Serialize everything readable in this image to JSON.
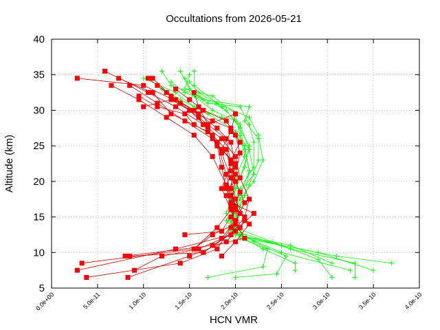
{
  "chart_data": {
    "type": "line",
    "title": "Occultations from 2026-05-21",
    "xlabel": "HCN VMR",
    "ylabel": "Altitude (km)",
    "xlim": [
      0,
      4e-10
    ],
    "ylim": [
      5,
      40
    ],
    "xticks": [
      "0.0e+00",
      "5.0e-11",
      "1.0e-10",
      "1.5e-10",
      "2.0e-10",
      "2.5e-10",
      "3.0e-10",
      "3.5e-10",
      "4.0e-10"
    ],
    "yticks": [
      "5",
      "10",
      "15",
      "20",
      "25",
      "30",
      "35",
      "40"
    ],
    "grid": true,
    "legend": "none",
    "series_colors": {
      "red": "#ff0000",
      "green": "#00ff00",
      "red_line": "#cc0000"
    },
    "series": [
      {
        "color": "red",
        "marker": "square",
        "points": [
          [
            2.8e-11,
            34.5
          ],
          [
            1e-10,
            33.5
          ],
          [
            1.4e-10,
            31.0
          ],
          [
            1.6e-10,
            29.0
          ],
          [
            1.9e-10,
            26.0
          ],
          [
            1.95e-10,
            22.5
          ],
          [
            1.85e-10,
            19.0
          ],
          [
            1.95e-10,
            16.0
          ],
          [
            1.8e-10,
            13.5
          ],
          [
            1.55e-10,
            10.5
          ],
          [
            3.3e-11,
            8.5
          ]
        ]
      },
      {
        "color": "red",
        "marker": "square",
        "points": [
          [
            5.8e-11,
            35.5
          ],
          [
            1.05e-10,
            32.5
          ],
          [
            1.35e-10,
            30.5
          ],
          [
            1.65e-10,
            28.0
          ],
          [
            1.8e-10,
            25.5
          ],
          [
            1.9e-10,
            21.0
          ],
          [
            1.95e-10,
            18.0
          ],
          [
            2.05e-10,
            15.5
          ],
          [
            1.95e-10,
            12.5
          ],
          [
            1.35e-10,
            10.5
          ],
          [
            2.8e-11,
            7.5
          ]
        ]
      },
      {
        "color": "red",
        "marker": "square",
        "points": [
          [
            7.3e-11,
            34.5
          ],
          [
            1.1e-10,
            32.5
          ],
          [
            1.3e-10,
            29.5
          ],
          [
            1.7e-10,
            27.0
          ],
          [
            1.85e-10,
            24.0
          ],
          [
            1.95e-10,
            20.5
          ],
          [
            2e-10,
            17.5
          ],
          [
            2.1e-10,
            14.5
          ],
          [
            1.9e-10,
            11.5
          ],
          [
            1.5e-10,
            9.5
          ],
          [
            8.3e-11,
            6.5
          ]
        ]
      },
      {
        "color": "red",
        "marker": "square",
        "points": [
          [
            6.5e-11,
            33.5
          ],
          [
            9.5e-11,
            31.5
          ],
          [
            1.25e-10,
            29.0
          ],
          [
            1.55e-10,
            26.5
          ],
          [
            1.75e-10,
            23.5
          ],
          [
            1.9e-10,
            19.5
          ],
          [
            2e-10,
            16.5
          ],
          [
            1.95e-10,
            13.5
          ],
          [
            1.8e-10,
            10.5
          ],
          [
            1.4e-10,
            8.5
          ],
          [
            3.8e-11,
            6.5
          ]
        ]
      },
      {
        "color": "red",
        "marker": "square",
        "points": [
          [
            8.5e-11,
            33.5
          ],
          [
            1.15e-10,
            31.0
          ],
          [
            1.45e-10,
            28.5
          ],
          [
            1.75e-10,
            26.0
          ],
          [
            1.95e-10,
            23.0
          ],
          [
            2e-10,
            20.0
          ],
          [
            1.95e-10,
            17.0
          ],
          [
            2.2e-10,
            15.5
          ],
          [
            2e-10,
            13.0
          ],
          [
            1.75e-10,
            11.0
          ],
          [
            8e-11,
            9.5
          ]
        ]
      },
      {
        "color": "red",
        "marker": "square",
        "points": [
          [
            1.05e-10,
            34.5
          ],
          [
            1.25e-10,
            32.5
          ],
          [
            1.5e-10,
            30.0
          ],
          [
            1.7e-10,
            27.5
          ],
          [
            1.8e-10,
            25.0
          ],
          [
            1.85e-10,
            22.0
          ],
          [
            1.9e-10,
            19.0
          ],
          [
            2e-10,
            16.0
          ],
          [
            2.05e-10,
            13.5
          ],
          [
            1.65e-10,
            10.0
          ],
          [
            8.5e-11,
            9.5
          ]
        ]
      },
      {
        "color": "red",
        "marker": "square",
        "points": [
          [
            1.1e-10,
            34.5
          ],
          [
            1.3e-10,
            32.0
          ],
          [
            1.55e-10,
            30.0
          ],
          [
            1.65e-10,
            28.0
          ],
          [
            1.85e-10,
            26.0
          ],
          [
            2e-10,
            23.5
          ],
          [
            2.05e-10,
            20.5
          ],
          [
            2.15e-10,
            17.5
          ],
          [
            2.1e-10,
            15.0
          ],
          [
            1.95e-10,
            12.5
          ],
          [
            1.6e-10,
            10.5
          ],
          [
            1.2e-10,
            9.5
          ],
          [
            9e-11,
            7.5
          ]
        ]
      },
      {
        "color": "red",
        "marker": "square",
        "points": [
          [
            1.15e-10,
            33.5
          ],
          [
            1.35e-10,
            31.5
          ],
          [
            1.6e-10,
            29.5
          ],
          [
            1.8e-10,
            27.5
          ],
          [
            1.95e-10,
            25.5
          ],
          [
            2e-10,
            22.0
          ],
          [
            1.9e-10,
            19.5
          ],
          [
            1.95e-10,
            16.5
          ],
          [
            2e-10,
            14.0
          ],
          [
            1.75e-10,
            12.5
          ],
          [
            1.55e-10,
            10.5
          ]
        ]
      },
      {
        "color": "red",
        "marker": "square",
        "points": [
          [
            1.35e-10,
            33.0
          ],
          [
            1.5e-10,
            31.5
          ],
          [
            1.65e-10,
            30.0
          ],
          [
            1.9e-10,
            28.5
          ],
          [
            2e-10,
            26.5
          ],
          [
            2.05e-10,
            24.0
          ],
          [
            2e-10,
            21.0
          ],
          [
            1.9e-10,
            18.0
          ],
          [
            2.05e-10,
            15.5
          ],
          [
            2.15e-10,
            14.0
          ],
          [
            2e-10,
            11.5
          ],
          [
            1.85e-10,
            9.5
          ]
        ]
      },
      {
        "color": "red",
        "marker": "square",
        "points": [
          [
            9.5e-11,
            32.0
          ],
          [
            1.15e-10,
            30.5
          ],
          [
            1.45e-10,
            29.5
          ],
          [
            1.55e-10,
            28.0
          ],
          [
            1.75e-10,
            26.5
          ],
          [
            1.9e-10,
            24.5
          ],
          [
            1.95e-10,
            21.5
          ],
          [
            2.05e-10,
            18.5
          ],
          [
            1.95e-10,
            15.0
          ],
          [
            2.1e-10,
            12.0
          ],
          [
            1.75e-10,
            11.0
          ]
        ]
      },
      {
        "color": "red",
        "marker": "square",
        "points": [
          [
            1e-10,
            30.5
          ],
          [
            1.3e-10,
            31.5
          ],
          [
            1.5e-10,
            30.0
          ],
          [
            1.75e-10,
            28.5
          ],
          [
            1.95e-10,
            27.5
          ],
          [
            2.05e-10,
            25.5
          ],
          [
            1.95e-10,
            23.0
          ],
          [
            2e-10,
            20.0
          ],
          [
            2.1e-10,
            17.0
          ],
          [
            2e-10,
            14.5
          ],
          [
            1.85e-10,
            12.0
          ]
        ]
      },
      {
        "color": "red",
        "marker": "square",
        "points": [
          [
            1.55e-10,
            32.5
          ],
          [
            1.6e-10,
            30.5
          ],
          [
            1.7e-10,
            28.0
          ],
          [
            2e-10,
            29.5
          ],
          [
            1.95e-10,
            27.0
          ],
          [
            1.85e-10,
            24.5
          ],
          [
            2e-10,
            22.5
          ],
          [
            1.95e-10,
            19.0
          ],
          [
            2e-10,
            16.0
          ],
          [
            1.85e-10,
            13.0
          ],
          [
            1.45e-10,
            12.5
          ]
        ]
      },
      {
        "color": "green",
        "marker": "plus",
        "points": [
          [
            1.2e-10,
            35.5
          ],
          [
            1.3e-10,
            33.5
          ],
          [
            1.6e-10,
            32.0
          ],
          [
            1.9e-10,
            30.0
          ],
          [
            2.05e-10,
            27.5
          ],
          [
            2.1e-10,
            24.5
          ],
          [
            2.15e-10,
            21.5
          ],
          [
            2.05e-10,
            18.0
          ],
          [
            2e-10,
            15.5
          ],
          [
            2e-10,
            12.5
          ],
          [
            2.5e-10,
            11.0
          ],
          [
            3.1e-10,
            9.5
          ],
          [
            3.7e-10,
            8.5
          ]
        ]
      },
      {
        "color": "green",
        "marker": "plus",
        "points": [
          [
            1.4e-10,
            35.5
          ],
          [
            1.5e-10,
            33.0
          ],
          [
            1.7e-10,
            31.0
          ],
          [
            2.05e-10,
            30.5
          ],
          [
            2.15e-10,
            28.0
          ],
          [
            2.2e-10,
            25.5
          ],
          [
            2.2e-10,
            22.0
          ],
          [
            2.05e-10,
            19.0
          ],
          [
            1.95e-10,
            16.0
          ],
          [
            2e-10,
            13.0
          ],
          [
            2.6e-10,
            10.5
          ],
          [
            3.3e-10,
            8.5
          ],
          [
            3.3e-10,
            6.5
          ]
        ]
      },
      {
        "color": "green",
        "marker": "plus",
        "points": [
          [
            1.5e-10,
            35.0
          ],
          [
            1.45e-10,
            33.0
          ],
          [
            1.75e-10,
            32.0
          ],
          [
            2e-10,
            29.5
          ],
          [
            2.05e-10,
            26.5
          ],
          [
            2.1e-10,
            23.5
          ],
          [
            2e-10,
            20.5
          ],
          [
            1.95e-10,
            17.5
          ],
          [
            2e-10,
            14.5
          ],
          [
            2.1e-10,
            12.0
          ],
          [
            2.9e-10,
            10.0
          ],
          [
            3.5e-10,
            7.5
          ]
        ]
      },
      {
        "color": "green",
        "marker": "plus",
        "points": [
          [
            1.55e-10,
            35.5
          ],
          [
            1.55e-10,
            33.5
          ],
          [
            1.8e-10,
            31.0
          ],
          [
            2.15e-10,
            29.0
          ],
          [
            2.25e-10,
            26.5
          ],
          [
            2.3e-10,
            23.0
          ],
          [
            2.2e-10,
            20.0
          ],
          [
            2.05e-10,
            17.5
          ],
          [
            1.9e-10,
            14.5
          ],
          [
            2.05e-10,
            12.5
          ],
          [
            2.5e-10,
            10.0
          ],
          [
            3.25e-10,
            7.5
          ]
        ]
      },
      {
        "color": "green",
        "marker": "plus",
        "points": [
          [
            1e-10,
            34.5
          ],
          [
            1.35e-10,
            32.5
          ],
          [
            1.55e-10,
            30.5
          ],
          [
            1.85e-10,
            29.0
          ],
          [
            2e-10,
            27.0
          ],
          [
            2.15e-10,
            24.5
          ],
          [
            2.2e-10,
            21.0
          ],
          [
            2.05e-10,
            18.5
          ],
          [
            1.95e-10,
            16.5
          ],
          [
            2e-10,
            13.5
          ],
          [
            2.4e-10,
            11.5
          ],
          [
            2.9e-10,
            9.0
          ],
          [
            3.05e-10,
            6.5
          ]
        ]
      },
      {
        "color": "green",
        "marker": "plus",
        "points": [
          [
            1.3e-10,
            34.0
          ],
          [
            1.45e-10,
            32.5
          ],
          [
            1.65e-10,
            31.5
          ],
          [
            2.15e-10,
            30.5
          ],
          [
            2.1e-10,
            28.5
          ],
          [
            2.25e-10,
            26.0
          ],
          [
            2.25e-10,
            23.0
          ],
          [
            2.15e-10,
            19.5
          ],
          [
            2.05e-10,
            16.5
          ],
          [
            1.95e-10,
            13.0
          ],
          [
            2.3e-10,
            10.5
          ],
          [
            2.65e-10,
            8.5
          ],
          [
            2.65e-10,
            7.5
          ]
        ]
      },
      {
        "color": "green",
        "marker": "plus",
        "points": [
          [
            1.45e-10,
            34.5
          ],
          [
            1.55e-10,
            32.0
          ],
          [
            1.75e-10,
            30.0
          ],
          [
            2e-10,
            28.5
          ],
          [
            2.15e-10,
            25.0
          ],
          [
            2.1e-10,
            22.0
          ],
          [
            2e-10,
            19.0
          ],
          [
            1.9e-10,
            15.5
          ],
          [
            2e-10,
            12.5
          ],
          [
            2.6e-10,
            11.0
          ],
          [
            3.05e-10,
            8.5
          ]
        ]
      },
      {
        "color": "green",
        "marker": "plus",
        "points": [
          [
            1.2e-10,
            33.0
          ],
          [
            1.4e-10,
            31.5
          ],
          [
            1.7e-10,
            29.5
          ],
          [
            1.95e-10,
            27.5
          ],
          [
            2.1e-10,
            25.0
          ],
          [
            2.15e-10,
            21.5
          ],
          [
            2.1e-10,
            18.0
          ],
          [
            1.95e-10,
            14.5
          ],
          [
            2.05e-10,
            12.0
          ],
          [
            2.35e-10,
            10.5
          ],
          [
            2.3e-10,
            8.0
          ],
          [
            1.7e-10,
            6.5
          ]
        ]
      },
      {
        "color": "green",
        "marker": "plus",
        "points": [
          [
            1.5e-10,
            34.0
          ],
          [
            1.6e-10,
            32.5
          ],
          [
            1.85e-10,
            30.5
          ],
          [
            2.05e-10,
            28.0
          ],
          [
            2.15e-10,
            24.5
          ],
          [
            2.05e-10,
            20.5
          ],
          [
            1.95e-10,
            17.0
          ],
          [
            2e-10,
            13.5
          ],
          [
            2.2e-10,
            11.5
          ],
          [
            2.55e-10,
            9.5
          ],
          [
            2.45e-10,
            7.0
          ],
          [
            2e-10,
            6.5
          ]
        ]
      }
    ]
  }
}
